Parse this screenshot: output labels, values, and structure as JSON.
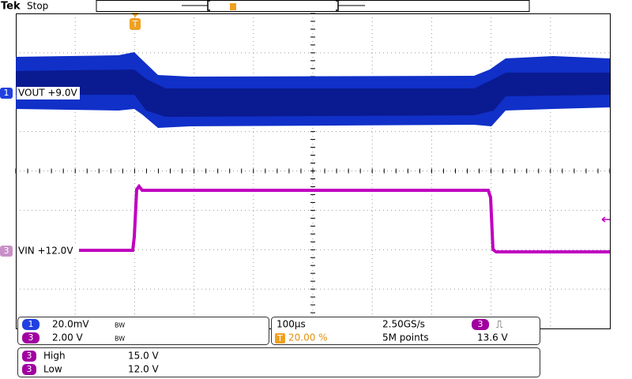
{
  "header": {
    "brand": "Tek",
    "status": "Stop"
  },
  "trigger_marker": "T",
  "traces": [
    {
      "number": "1",
      "label": "VOUT +9.0V"
    },
    {
      "number": "3",
      "label": "VIN +12.0V"
    }
  ],
  "vertical": [
    {
      "number": "1",
      "scale": "20.0mV",
      "bandwidth": "BW"
    },
    {
      "number": "3",
      "scale": "2.00 V",
      "bandwidth": "BW"
    }
  ],
  "horizontal": {
    "time_scale": "100µs",
    "sample_rate": "2.50GS/s",
    "trigger_position_icon": "T",
    "trigger_position": "20.00 %",
    "record_length": "5M points"
  },
  "trigger": {
    "source": "3",
    "slope": "⎍",
    "level": "13.6 V"
  },
  "measurements": [
    {
      "source": "3",
      "name": "High",
      "value": "15.0 V"
    },
    {
      "source": "3",
      "name": "Low",
      "value": "12.0 V"
    }
  ]
}
